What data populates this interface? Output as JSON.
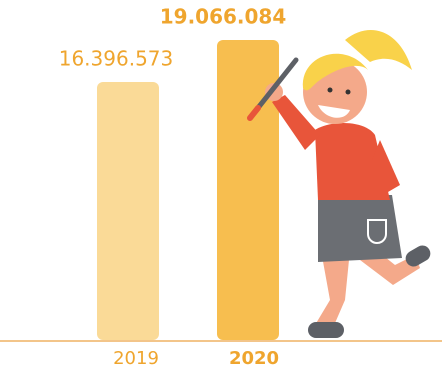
{
  "chart_data": {
    "type": "bar",
    "categories": [
      "2019",
      "2020"
    ],
    "values": [
      16396573,
      19066084
    ],
    "value_labels": [
      "16.396.573",
      "19.066.084"
    ],
    "colors": [
      "#f9d68c",
      "#f6b73c"
    ]
  }
}
